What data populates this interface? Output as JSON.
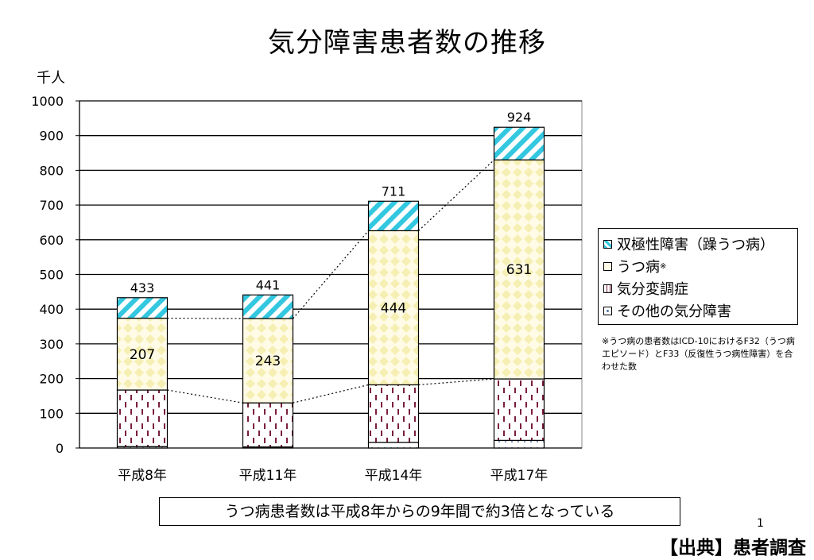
{
  "title": "気分障害患者数の推移",
  "unit_label": "千人",
  "legend_note": "※うつ病の患者数はICD-10におけるF32（うつ病エピソード）とF33（反復性うつ病性障害）を合わせた数",
  "summary": "うつ病患者数は平成8年からの9年間で約3倍となっている",
  "page_number": "1",
  "source": "【出典】患者調査",
  "chart_data": {
    "type": "bar",
    "stacked": true,
    "title": "気分障害患者数の推移",
    "ylabel": "千人",
    "ylim": [
      0,
      1000
    ],
    "yticks": [
      0,
      100,
      200,
      300,
      400,
      500,
      600,
      700,
      800,
      900,
      1000
    ],
    "grid": true,
    "categories": [
      "平成8年",
      "平成11年",
      "平成14年",
      "平成17年"
    ],
    "totals": [
      433,
      441,
      711,
      924
    ],
    "series": [
      {
        "name": "その他の気分障害",
        "legend_marker": "",
        "values": [
          4,
          3,
          16,
          22
        ],
        "pattern": "dots",
        "color": "#ffffff",
        "mark_color": "#4a6fa5"
      },
      {
        "name": "気分変調症",
        "legend_marker": "",
        "values": [
          163,
          127,
          166,
          177
        ],
        "pattern": "dashes",
        "color": "#ffffff",
        "mark_color": "#7a1f3a"
      },
      {
        "name": "うつ病",
        "legend_marker": "※",
        "values": [
          207,
          243,
          444,
          631
        ],
        "pattern": "diamonds",
        "color": "#fffbe6",
        "mark_color": "#f6efb3"
      },
      {
        "name": "双極性障害（躁うつ病）",
        "legend_marker": "",
        "values": [
          59,
          68,
          85,
          94
        ],
        "pattern": "stripes",
        "color": "#ffffff",
        "mark_color": "#33c7e0"
      }
    ],
    "value_labels": {
      "うつ病": [
        207,
        243,
        444,
        631
      ]
    },
    "legend_position": "right"
  }
}
